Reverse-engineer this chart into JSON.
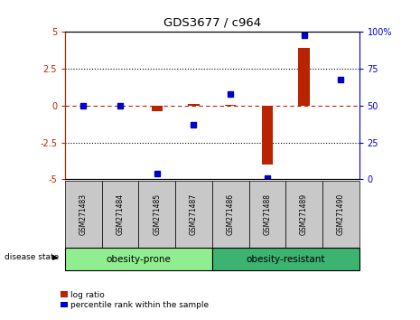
{
  "title": "GDS3677 / c964",
  "samples": [
    "GSM271483",
    "GSM271484",
    "GSM271485",
    "GSM271487",
    "GSM271486",
    "GSM271488",
    "GSM271489",
    "GSM271490"
  ],
  "log_ratio": [
    0.0,
    0.0,
    -0.4,
    0.1,
    0.05,
    -4.0,
    3.9,
    0.0
  ],
  "percentile_rank": [
    50,
    50,
    4,
    37,
    58,
    1,
    98,
    68
  ],
  "groups": [
    {
      "label": "obesity-prone",
      "indices": [
        0,
        1,
        2,
        3
      ],
      "color": "#90EE90"
    },
    {
      "label": "obesity-resistant",
      "indices": [
        4,
        5,
        6,
        7
      ],
      "color": "#3CB371"
    }
  ],
  "ylim_left": [
    -5,
    5
  ],
  "ylim_right": [
    0,
    100
  ],
  "yticks_left": [
    -5,
    -2.5,
    0,
    2.5,
    5
  ],
  "yticks_left_labels": [
    "-5",
    "-2.5",
    "0",
    "2.5",
    "5"
  ],
  "yticks_right": [
    0,
    25,
    50,
    75,
    100
  ],
  "yticks_right_labels": [
    "0",
    "25",
    "50",
    "75",
    "100%"
  ],
  "bar_color_red": "#BB2200",
  "dot_color_blue": "#0000CC",
  "legend_red_label": "log ratio",
  "legend_blue_label": "percentile rank within the sample",
  "disease_state_label": "disease state",
  "left_axis_color": "#BB2200",
  "right_axis_color": "#0000CC",
  "sample_box_color": "#C8C8C8",
  "group_prone_color": "#AAFFAA",
  "group_resistant_color": "#33CC33"
}
